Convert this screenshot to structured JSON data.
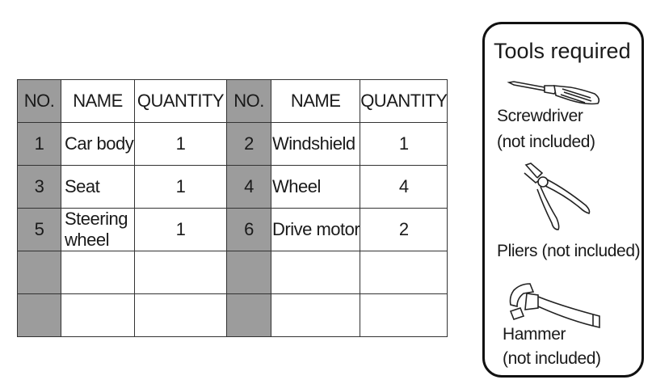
{
  "parts_table": {
    "headers": [
      "NO.",
      "NAME",
      "QUANTITY",
      "NO.",
      "NAME",
      "QUANTITY"
    ],
    "rows": [
      [
        "1",
        "Car body",
        "1",
        "2",
        "Windshield",
        "1"
      ],
      [
        "3",
        "Seat",
        "1",
        "4",
        "Wheel",
        "4"
      ],
      [
        "5",
        "Steering wheel",
        "1",
        "6",
        "Drive motor",
        "2"
      ],
      [
        "",
        "",
        "",
        "",
        "",
        ""
      ],
      [
        "",
        "",
        "",
        "",
        "",
        ""
      ]
    ]
  },
  "tools": {
    "title": "Tools required",
    "items": [
      {
        "icon": "screwdriver-icon",
        "label": "Screwdriver",
        "note": "(not included)"
      },
      {
        "icon": "pliers-icon",
        "label": "Pliers (not included)"
      },
      {
        "icon": "hammer-icon",
        "label": "Hammer",
        "note": "(not included)"
      }
    ]
  }
}
